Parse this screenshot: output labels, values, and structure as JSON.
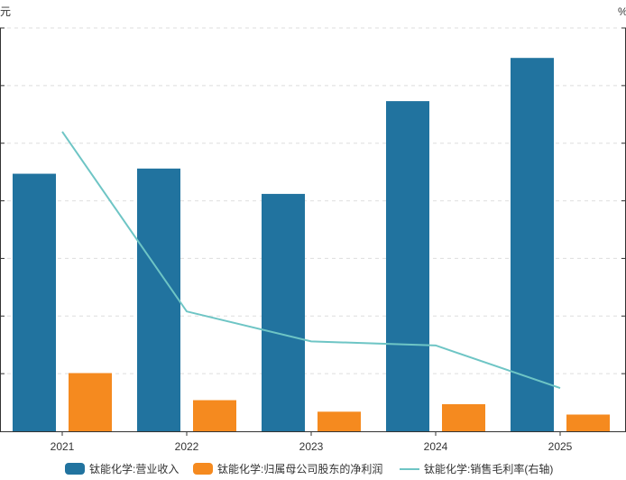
{
  "chart_data": {
    "type": "bar",
    "categories": [
      "2021",
      "2022",
      "2023",
      "2024",
      "2025"
    ],
    "y_left_unit": "元",
    "y_right_unit": "%",
    "grid": true,
    "legend_position": "bottom",
    "ylim_left": [
      0,
      7
    ],
    "ylim_right": [
      0,
      7
    ],
    "series": [
      {
        "name": "钛能化学:营业收入",
        "kind": "bar",
        "axis": "left",
        "color": "#21739F",
        "values": [
          4.47,
          4.56,
          4.12,
          5.73,
          6.48
        ]
      },
      {
        "name": "钛能化学:归属母公司股东的净利润",
        "kind": "bar",
        "axis": "left",
        "color": "#F58A1F",
        "values": [
          1.01,
          0.54,
          0.34,
          0.47,
          0.29
        ]
      },
      {
        "name": "钛能化学:销售毛利率(右轴)",
        "kind": "line",
        "axis": "right",
        "color": "#6EC5C5",
        "values": [
          5.2,
          2.08,
          1.56,
          1.49,
          0.75
        ]
      }
    ]
  }
}
